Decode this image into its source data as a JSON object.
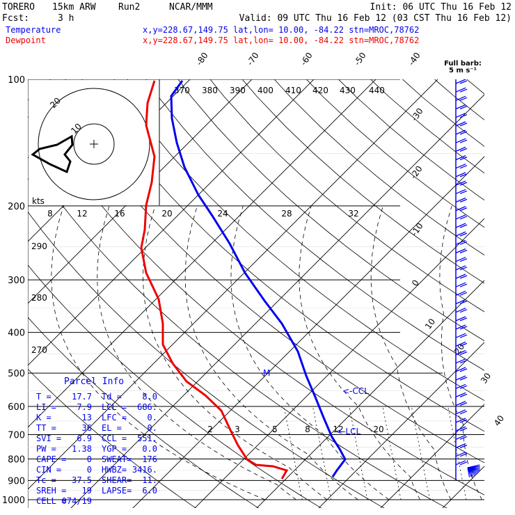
{
  "header": {
    "model": "TORERO",
    "resolution": "15km ARW",
    "run": "Run2",
    "org": "NCAR/MMM",
    "init": "Init: 06 UTC Thu 16 Feb 12",
    "fcst_label": "Fcst:",
    "fcst_value": "3 h",
    "valid": "Valid: 09 UTC Thu 16 Feb 12 (03 CST Thu 16 Feb 12)"
  },
  "legend": {
    "temperature": {
      "name": "Temperature",
      "color": "#0000ee",
      "location": "x,y=228.67,149.75   lat,lon= 10.00, -84.22   stn=MROC,78762"
    },
    "dewpoint": {
      "name": "Dewpoint",
      "color": "#ee0000",
      "location": "x,y=228.67,149.75   lat,lon= 10.00, -84.22   stn=MROC,78762"
    }
  },
  "wind_key": {
    "title": "Full barb:",
    "value": "5 m s⁻¹"
  },
  "hodograph": {
    "units": "kts",
    "ring_labels": [
      "20",
      "10"
    ]
  },
  "parcel_info": {
    "title": "Parcel Info",
    "rows": [
      {
        "a": "T  =",
        "av": "17.7",
        "b": "Td =",
        "bv": "8.0"
      },
      {
        "a": "LI =",
        "av": "7.9",
        "b": "LCL =",
        "bv": "686."
      },
      {
        "a": "K  =",
        "av": "13",
        "b": "LFC =",
        "bv": "0."
      },
      {
        "a": "TT =",
        "av": "36",
        "b": "EL  =",
        "bv": "0."
      },
      {
        "a": "SVI =",
        "av": "6.9",
        "b": "CCL =",
        "bv": "551."
      },
      {
        "a": "PW =",
        "av": "1.38",
        "b": "YGP =",
        "bv": "0.0"
      },
      {
        "a": "CAPE =",
        "av": "0",
        "b": "SWEAT=",
        "bv": "176"
      },
      {
        "a": "CIN =",
        "av": "0",
        "b": "HWBZ=",
        "bv": "3416."
      },
      {
        "a": "Tc =",
        "av": "37.5",
        "b": "SHEAR=",
        "bv": "11."
      },
      {
        "a": "SREH =",
        "av": "19",
        "b": "LAPSE=",
        "bv": "6.0"
      },
      {
        "a": "CELL =",
        "av": "074/19",
        "b": "",
        "bv": ""
      }
    ]
  },
  "chart_data": {
    "type": "line",
    "subtype": "skew-T log-p",
    "y_axis_pressure_hpa": [
      100,
      200,
      300,
      400,
      500,
      600,
      700,
      800,
      900,
      1000
    ],
    "isotherm_labels_c": [
      -80,
      -70,
      -60,
      -50,
      -40,
      -30,
      -20,
      -10,
      0,
      10,
      20,
      30,
      40
    ],
    "theta_labels_k": [
      270,
      280,
      290,
      300,
      370,
      380,
      390,
      400,
      410,
      420,
      430,
      440
    ],
    "mixing_ratio_labels_low": [
      "2",
      "3",
      "5",
      "8",
      "12",
      "20"
    ],
    "upper_scale_labels": [
      "8",
      "12",
      "16",
      "20",
      "24",
      "28",
      "32"
    ],
    "annotations": [
      "M",
      "<-CCL",
      "<-LCL"
    ],
    "series": [
      {
        "name": "Temperature",
        "color": "#0000ee",
        "pressure": [
          100,
          150,
          200,
          250,
          300,
          350,
          400,
          450,
          500,
          550,
          600,
          650,
          700,
          750,
          780,
          800,
          830,
          860,
          880
        ],
        "temperature": [
          -80,
          -68,
          -55,
          -42,
          -31,
          -22,
          -14,
          -8,
          -3,
          2,
          6,
          9,
          11,
          13.5,
          15,
          15.5,
          16,
          16.5,
          17
        ]
      },
      {
        "name": "Dewpoint",
        "color": "#ee0000",
        "pressure": [
          100,
          150,
          180,
          200,
          250,
          300,
          350,
          400,
          450,
          500,
          550,
          600,
          650,
          700,
          750,
          780,
          800,
          830,
          860,
          870
        ],
        "dewpoint": [
          -73,
          -95,
          -102,
          -104,
          -111,
          -110,
          -102,
          -98,
          -90,
          -74,
          -55,
          -40,
          -26,
          -16,
          -8,
          -2,
          2,
          5,
          7,
          8
        ]
      }
    ],
    "hodograph": {
      "u": [
        -14,
        -16,
        -14,
        -10,
        -6,
        -2,
        0
      ],
      "v": [
        -2,
        2,
        3,
        3,
        -4,
        -8,
        -6
      ]
    },
    "wind_barbs": {
      "count": 46,
      "bottom_cluster_count": 12
    }
  }
}
